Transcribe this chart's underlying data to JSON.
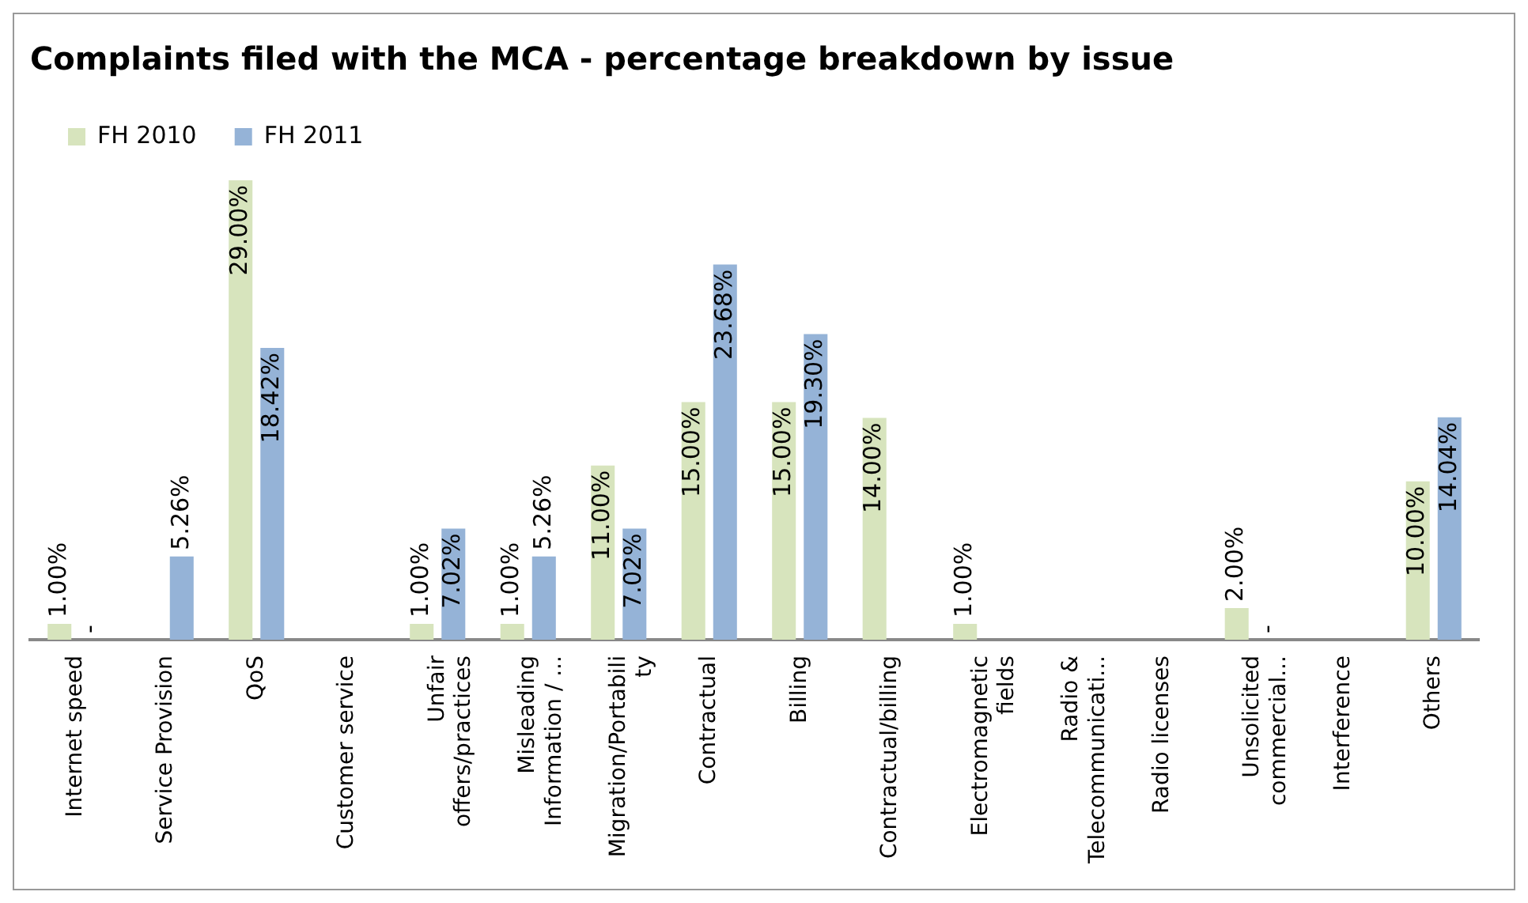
{
  "chart_data": {
    "type": "bar",
    "title": "Complaints filed with the MCA - percentage breakdown by issue",
    "categories": [
      "Internet speed",
      "Service Provision",
      "QoS",
      "Customer service",
      "Unfair offers/practices",
      "Misleading Information / ...",
      "Migration/Portability",
      "Contractual",
      "Billing",
      "Contractual/billing",
      "Electromagnetic fields",
      "Radio & Telecommunicati...",
      "Radio licenses",
      "Unsolicited commercial...",
      "Interference",
      "Others"
    ],
    "series": [
      {
        "name": "FH 2010",
        "color": "#d7e4bd",
        "values": [
          1,
          null,
          29,
          null,
          1,
          1,
          11,
          15,
          15,
          14,
          1,
          null,
          null,
          2,
          null,
          10
        ],
        "value_labels": [
          "1.00%",
          null,
          "29.00%",
          null,
          "1.00%",
          "1.00%",
          "11.00%",
          "15.00%",
          "15.00%",
          "14.00%",
          "1.00%",
          null,
          null,
          "2.00%",
          null,
          "10.00%"
        ]
      },
      {
        "name": "FH 2011",
        "color": "#95b3d7",
        "values": [
          0,
          5.26,
          18.42,
          null,
          7.02,
          5.26,
          7.02,
          23.68,
          19.3,
          null,
          null,
          null,
          null,
          0,
          null,
          14.04
        ],
        "value_labels": [
          "-",
          "5.26%",
          "18.42%",
          null,
          "7.02%",
          "5.26%",
          "7.02%",
          "23.68%",
          "19.30%",
          null,
          null,
          null,
          null,
          "-",
          null,
          "14.04%"
        ]
      }
    ],
    "legend": "top left",
    "grid": false
  }
}
